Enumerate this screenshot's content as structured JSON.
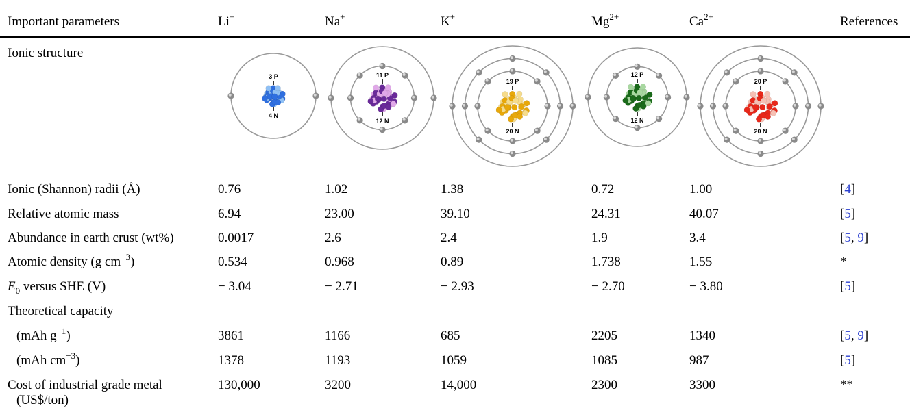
{
  "table": {
    "headers": [
      "Important parameters",
      "Li",
      "Na",
      "K",
      "Mg",
      "Ca",
      "References"
    ],
    "header_sup": [
      "",
      "+",
      "+",
      "+",
      "2+",
      "2+",
      ""
    ],
    "ionic_structure_label": "Ionic structure",
    "atoms": [
      {
        "protons_label": "3 P",
        "neutrons_label": "4 N",
        "color": "#2f6fe0",
        "light": "#8fc0f5",
        "shells": [
          2
        ]
      },
      {
        "protons_label": "11 P",
        "neutrons_label": "12 N",
        "color": "#6a2a9a",
        "light": "#e0a8e8",
        "shells": [
          8,
          2
        ]
      },
      {
        "protons_label": "19 P",
        "neutrons_label": "20 N",
        "color": "#e8a80a",
        "light": "#f6dc8c",
        "shells": [
          8,
          8,
          2
        ]
      },
      {
        "protons_label": "12 P",
        "neutrons_label": "12 N",
        "color": "#1a6a1a",
        "light": "#a8d8a0",
        "shells": [
          8,
          2
        ]
      },
      {
        "protons_label": "20 P",
        "neutrons_label": "20 N",
        "color": "#e8281a",
        "light": "#f6c0b4",
        "shells": [
          8,
          8,
          2
        ]
      }
    ],
    "rows": [
      {
        "label": "Ionic (Shannon) radii (Å)",
        "values": [
          "0.76",
          "1.02",
          "1.38",
          "0.72",
          "1.00"
        ],
        "ref": "[4]"
      },
      {
        "label": "Relative atomic mass",
        "values": [
          "6.94",
          "23.00",
          "39.10",
          "24.31",
          "40.07"
        ],
        "ref": "[5]"
      },
      {
        "label": "Abundance in earth crust (wt%)",
        "values": [
          "0.0017",
          "2.6",
          "2.4",
          "1.9",
          "3.4"
        ],
        "ref": "[5, 9]"
      },
      {
        "label": "Atomic density (g cm",
        "label_sup": "−3",
        "label_end": ")",
        "values": [
          "0.534",
          "0.968",
          "0.89",
          "1.738",
          "1.55"
        ],
        "ref": "*"
      },
      {
        "label_italic": "E",
        "label_sub": "0",
        "label": " versus SHE (V)",
        "values": [
          "− 3.04",
          "− 2.71",
          "− 2.93",
          "− 2.70",
          "− 3.80"
        ],
        "ref": "[5]"
      },
      {
        "label": "Theoretical capacity",
        "values": [
          "",
          "",
          "",
          "",
          ""
        ],
        "ref": ""
      },
      {
        "label": "(mAh g",
        "label_sup": "−1",
        "label_end": ")",
        "indent": true,
        "values": [
          "3861",
          "1166",
          "685",
          "2205",
          "1340"
        ],
        "ref": "[5, 9]"
      },
      {
        "label": "(mAh cm",
        "label_sup": "−3",
        "label_end": ")",
        "indent": true,
        "values": [
          "1378",
          "1193",
          "1059",
          "1085",
          "987"
        ],
        "ref": "[5]"
      },
      {
        "label": "Cost of industrial grade metal",
        "label2": "(US$/ton)",
        "values": [
          "130,000",
          "3200",
          "14,000",
          "2300",
          "3300"
        ],
        "ref": "**"
      }
    ]
  }
}
